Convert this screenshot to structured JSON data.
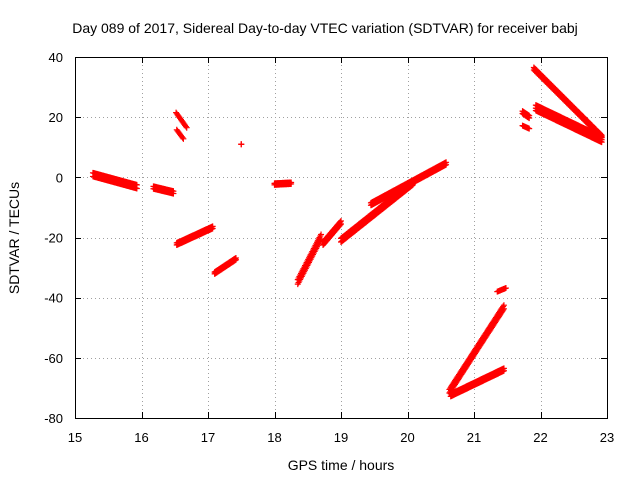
{
  "chart_data": {
    "type": "scatter",
    "title": "Day 089 of 2017, Sidereal Day-to-day VTEC variation (SDTVAR) for receiver babj",
    "xlabel": "GPS time / hours",
    "ylabel": "SDTVAR / TECUs",
    "xlim": [
      15,
      23
    ],
    "ylim": [
      -80,
      40
    ],
    "xticks": [
      "15",
      "16",
      "17",
      "18",
      "19",
      "20",
      "21",
      "22",
      "23"
    ],
    "yticks": [
      "-80",
      "-60",
      "-40",
      "-20",
      "0",
      "20",
      "40"
    ],
    "grid": true,
    "marker": "plus",
    "color": "#ff0000",
    "segments": [
      {
        "name": "arc-1",
        "x0": 15.27,
        "x1": 15.93,
        "y0": 1.5,
        "y1": -2.5,
        "bands": [
          0,
          -1.2
        ]
      },
      {
        "name": "arc-2",
        "x0": 16.18,
        "x1": 16.48,
        "y0": -3.0,
        "y1": -4.6,
        "bands": [
          0,
          -0.8
        ]
      },
      {
        "name": "arc-3",
        "x0": 16.52,
        "x1": 16.68,
        "y0": 21.5,
        "y1": 16.5,
        "bands": [
          0
        ]
      },
      {
        "name": "arc-4",
        "x0": 16.53,
        "x1": 16.63,
        "y0": 15.8,
        "y1": 12.8,
        "bands": [
          0
        ]
      },
      {
        "name": "arc-5",
        "x0": 16.53,
        "x1": 17.07,
        "y0": -21.8,
        "y1": -16.3,
        "bands": [
          0,
          -0.7
        ]
      },
      {
        "name": "arc-6",
        "x0": 17.1,
        "x1": 17.42,
        "y0": -31.5,
        "y1": -26.8,
        "bands": [
          0,
          -0.6
        ]
      },
      {
        "name": "arc-7",
        "x0": 17.5,
        "x1": 17.5,
        "y0": 11.0,
        "y1": 11.0,
        "bands": [
          0
        ]
      },
      {
        "name": "arc-8",
        "x0": 18.0,
        "x1": 18.25,
        "y0": -2.0,
        "y1": -1.7,
        "bands": [
          0,
          -0.5
        ]
      },
      {
        "name": "arc-9",
        "x0": 18.35,
        "x1": 18.7,
        "y0": -35.5,
        "y1": -20.5,
        "bands": [
          0,
          1.5
        ]
      },
      {
        "name": "arc-10",
        "x0": 18.73,
        "x1": 19.0,
        "y0": -22.5,
        "y1": -15.5,
        "bands": [
          0,
          1.0
        ]
      },
      {
        "name": "arc-11",
        "x0": 19.0,
        "x1": 20.08,
        "y0": -21.5,
        "y1": -2.5,
        "bands": [
          0,
          1.2
        ]
      },
      {
        "name": "arc-12",
        "x0": 19.45,
        "x1": 20.58,
        "y0": -8.5,
        "y1": 5.0,
        "bands": [
          0,
          -0.8
        ]
      },
      {
        "name": "arc-13",
        "x0": 20.63,
        "x1": 21.45,
        "y0": -70.5,
        "y1": -42.5,
        "bands": [
          0,
          -1.2
        ]
      },
      {
        "name": "arc-14",
        "x0": 20.65,
        "x1": 21.45,
        "y0": -72.0,
        "y1": -63.5,
        "bands": [
          0,
          -0.8
        ]
      },
      {
        "name": "arc-15",
        "x0": 21.35,
        "x1": 21.48,
        "y0": -38.0,
        "y1": -36.8,
        "bands": [
          0
        ]
      },
      {
        "name": "arc-16",
        "x0": 21.73,
        "x1": 21.83,
        "y0": 22.0,
        "y1": 20.5,
        "bands": [
          0,
          -0.8
        ]
      },
      {
        "name": "arc-17",
        "x0": 21.73,
        "x1": 21.83,
        "y0": 17.2,
        "y1": 16.2,
        "bands": [
          0
        ]
      },
      {
        "name": "arc-18",
        "x0": 21.9,
        "x1": 22.92,
        "y0": 36.5,
        "y1": 14.0,
        "bands": [
          0,
          -0.8
        ]
      },
      {
        "name": "arc-19",
        "x0": 21.93,
        "x1": 22.92,
        "y0": 24.0,
        "y1": 13.5,
        "bands": [
          0,
          -1.0,
          -1.8
        ]
      }
    ]
  }
}
